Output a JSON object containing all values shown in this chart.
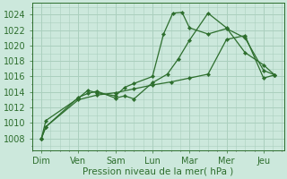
{
  "background_color": "#cce8dc",
  "grid_color": "#aacfbe",
  "line_color": "#2d6e2d",
  "x_labels": [
    "Dim",
    "Ven",
    "Sam",
    "Lun",
    "Mar",
    "Mer",
    "Jeu"
  ],
  "x_positions": [
    0,
    1,
    2,
    3,
    4,
    5,
    6
  ],
  "xlabel": "Pression niveau de la mer( hPa )",
  "ylim": [
    1006.5,
    1025.5
  ],
  "yticks": [
    1008,
    1010,
    1012,
    1014,
    1016,
    1018,
    1020,
    1022,
    1024
  ],
  "line1_x": [
    0.0,
    0.12,
    1.0,
    1.25,
    1.5,
    2.0,
    2.25,
    2.5,
    3.0,
    3.4,
    3.7,
    4.0,
    4.5,
    5.0,
    5.5,
    6.0,
    6.3
  ],
  "line1_y": [
    1008.0,
    1009.5,
    1013.3,
    1013.8,
    1014.1,
    1013.2,
    1013.5,
    1013.1,
    1015.2,
    1016.3,
    1018.3,
    1020.7,
    1024.2,
    1022.3,
    1019.1,
    1017.5,
    1016.2
  ],
  "line2_x": [
    0.0,
    0.12,
    1.0,
    1.25,
    1.5,
    2.0,
    2.25,
    2.5,
    3.0,
    3.3,
    3.55,
    3.8,
    4.0,
    4.5,
    5.0,
    5.5,
    6.0,
    6.3
  ],
  "line2_y": [
    1008.0,
    1010.3,
    1013.2,
    1014.2,
    1013.9,
    1013.5,
    1014.6,
    1015.1,
    1016.0,
    1021.5,
    1024.2,
    1024.3,
    1022.3,
    1021.5,
    1022.2,
    1021.0,
    1016.8,
    1016.2
  ],
  "line3_x": [
    0.0,
    0.12,
    1.0,
    1.5,
    2.0,
    2.5,
    3.0,
    3.5,
    4.0,
    4.5,
    5.0,
    5.5,
    6.0,
    6.3
  ],
  "line3_y": [
    1008.0,
    1009.5,
    1013.0,
    1013.6,
    1013.9,
    1014.4,
    1014.9,
    1015.3,
    1015.8,
    1016.3,
    1020.8,
    1021.3,
    1015.8,
    1016.2
  ]
}
